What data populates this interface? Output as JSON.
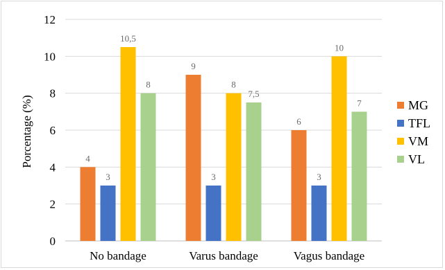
{
  "chart_data": {
    "type": "bar",
    "categories": [
      "No bandage",
      "Varus bandage",
      "Vagus bandage"
    ],
    "series": [
      {
        "name": "MG",
        "color": "#ed7d31",
        "values": [
          4,
          9,
          6
        ],
        "labels": [
          "4",
          "9",
          "6"
        ]
      },
      {
        "name": "TFL",
        "color": "#4472c4",
        "values": [
          3,
          3,
          3
        ],
        "labels": [
          "3",
          "3",
          "3"
        ]
      },
      {
        "name": "VM",
        "color": "#ffc000",
        "values": [
          10.5,
          8,
          10
        ],
        "labels": [
          "10,5",
          "8",
          "10"
        ]
      },
      {
        "name": "VL",
        "color": "#a9d18e",
        "values": [
          8,
          7.5,
          7
        ],
        "labels": [
          "8",
          "7,5",
          "7"
        ]
      }
    ],
    "ylabel": "Porcentage (%)",
    "xlabel": "",
    "ylim": [
      0,
      12
    ],
    "yticks": [
      "0",
      "2",
      "4",
      "6",
      "8",
      "10",
      "12"
    ],
    "grid": true,
    "legend": "right"
  }
}
